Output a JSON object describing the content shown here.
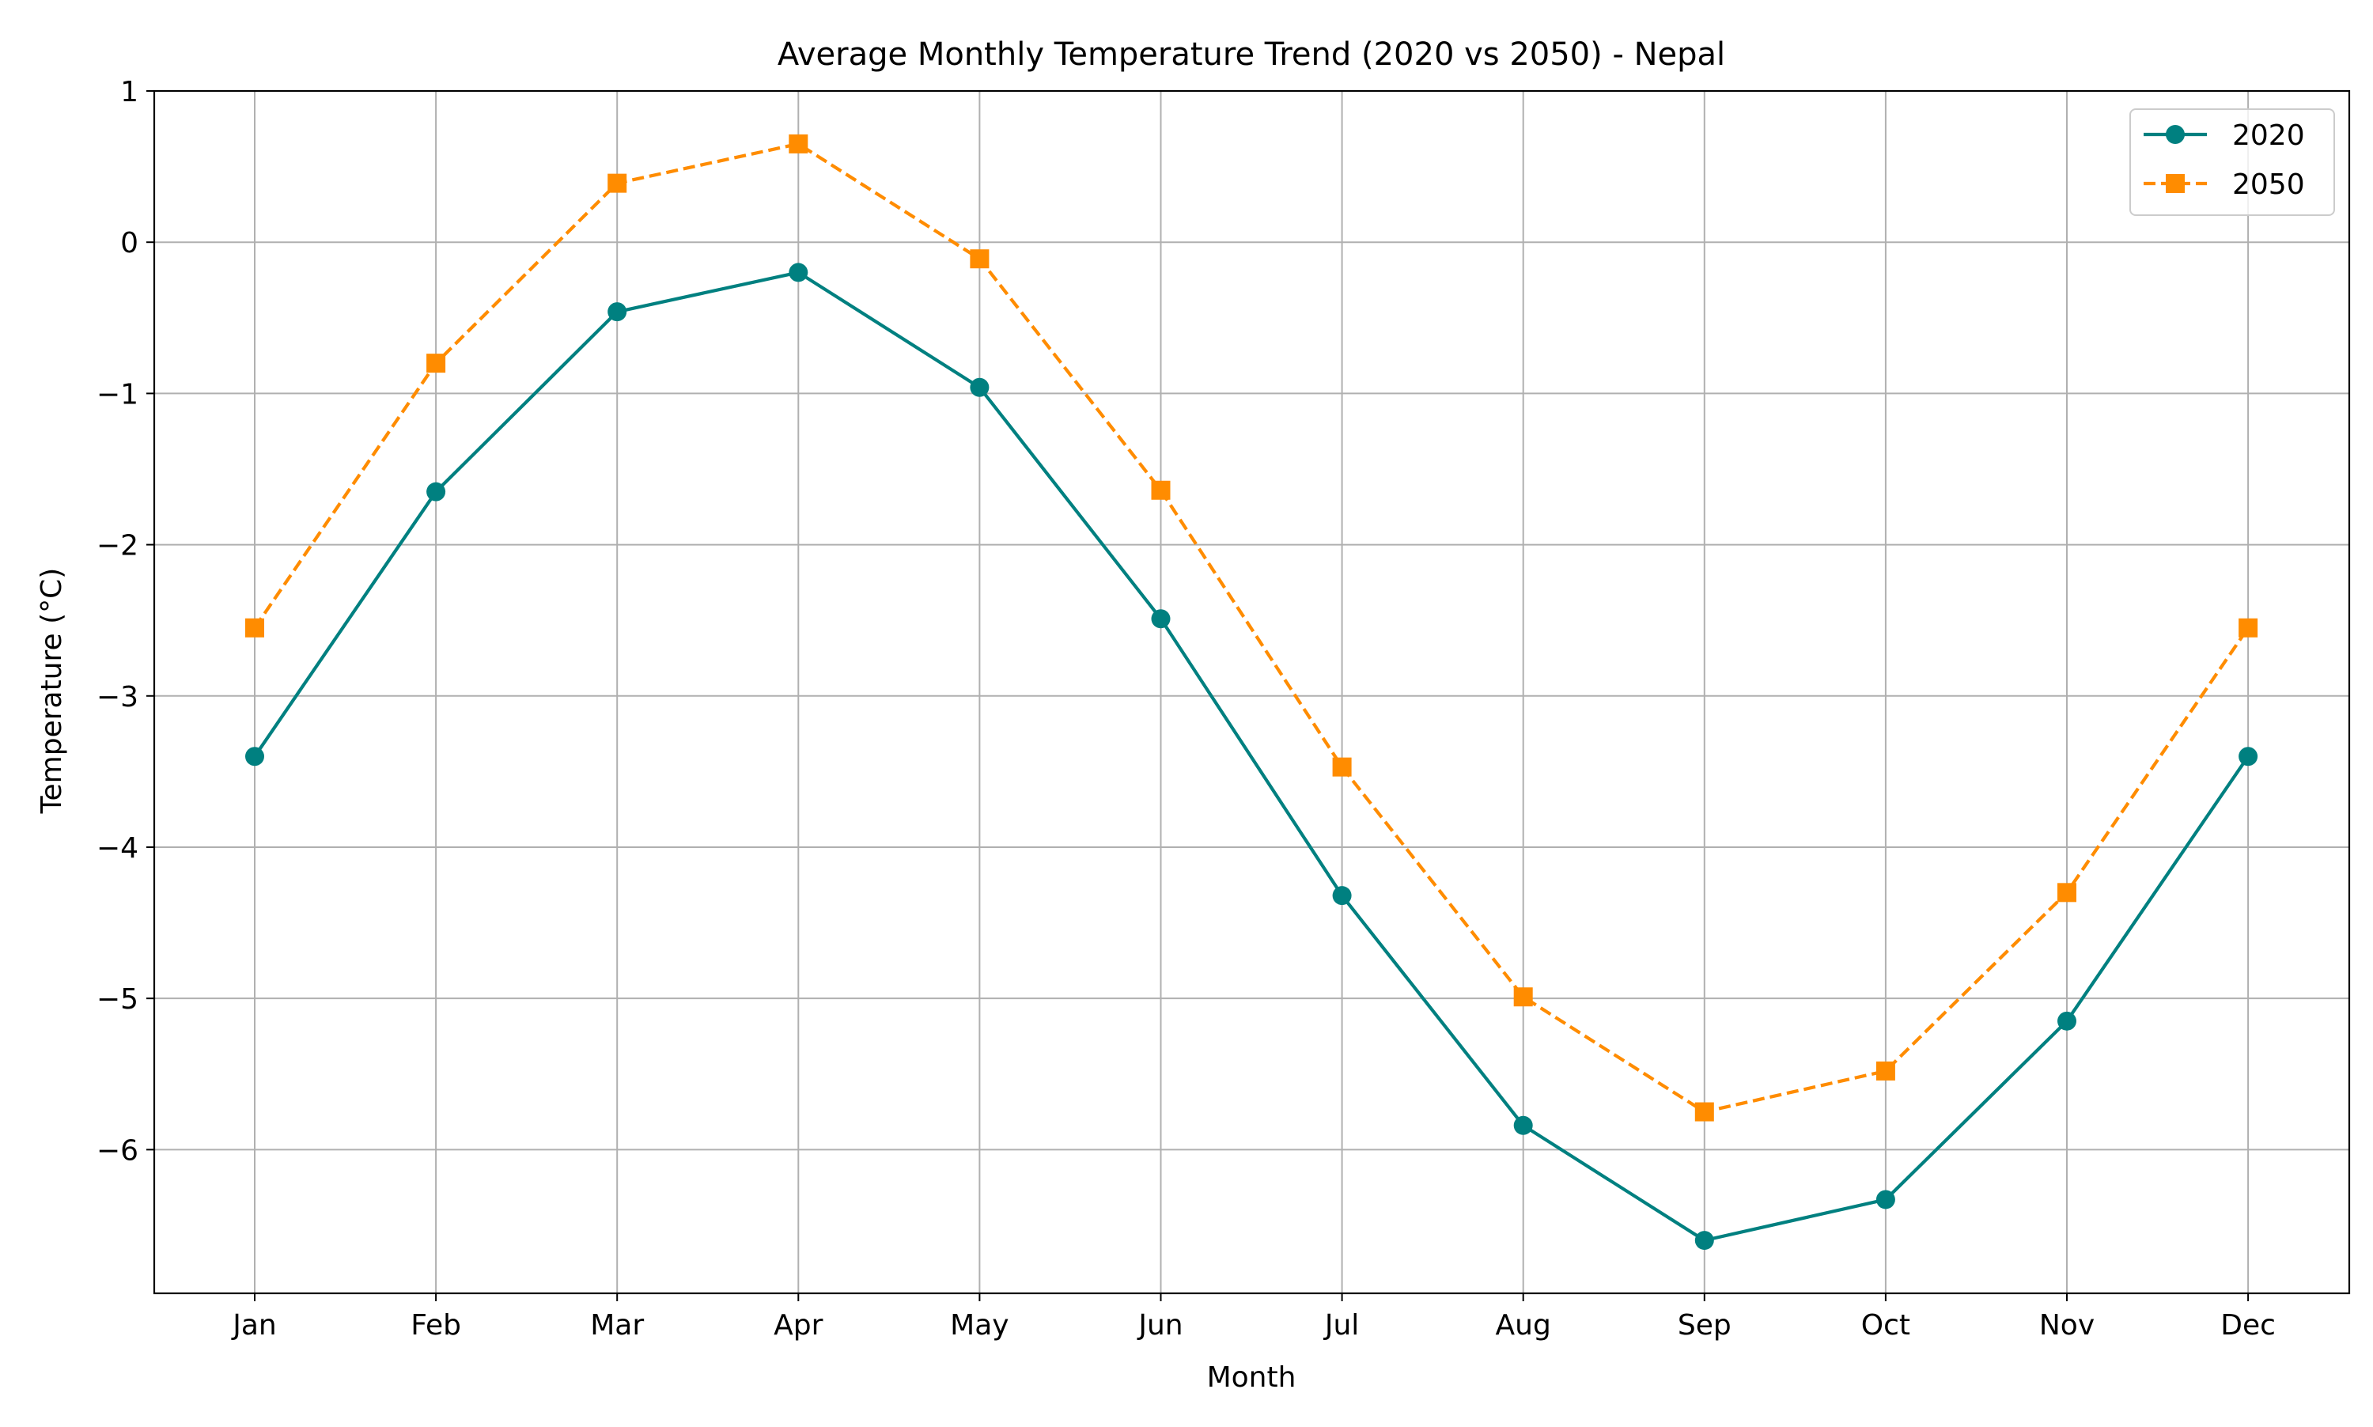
{
  "chart_data": {
    "type": "line",
    "title": "Average Monthly Temperature Trend (2020 vs 2050) - Nepal",
    "xlabel": "Month",
    "ylabel": "Temperature (°C)",
    "categories": [
      "Jan",
      "Feb",
      "Mar",
      "Apr",
      "May",
      "Jun",
      "Jul",
      "Aug",
      "Sep",
      "Oct",
      "Nov",
      "Dec"
    ],
    "ylim": [
      -6.95,
      1.0
    ],
    "yticks": [
      1,
      0,
      -1,
      -2,
      -3,
      -4,
      -5,
      -6
    ],
    "ytick_labels": [
      "1",
      "0",
      "−1",
      "−2",
      "−3",
      "−4",
      "−5",
      "−6"
    ],
    "grid": true,
    "legend_position": "top-right",
    "series": [
      {
        "name": "2020",
        "color": "#008080",
        "marker": "circle",
        "line_style": "solid",
        "values": [
          -3.4,
          -1.65,
          -0.46,
          -0.2,
          -0.96,
          -2.49,
          -4.32,
          -5.84,
          -6.6,
          -6.33,
          -5.15,
          -3.4
        ]
      },
      {
        "name": "2050",
        "color": "#ff8c00",
        "marker": "square",
        "line_style": "dashed",
        "values": [
          -2.55,
          -0.8,
          0.39,
          0.65,
          -0.11,
          -1.64,
          -3.47,
          -4.99,
          -5.75,
          -5.48,
          -4.3,
          -2.55
        ]
      }
    ]
  }
}
